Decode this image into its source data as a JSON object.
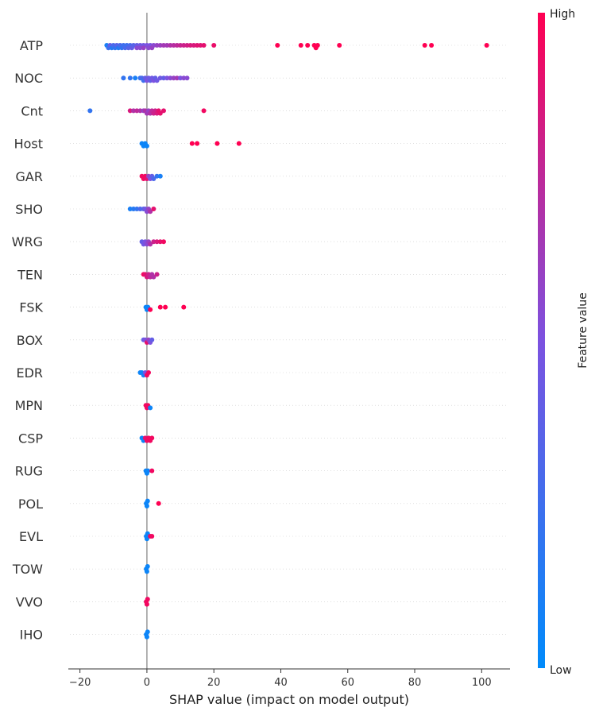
{
  "chart_data": {
    "type": "scatter",
    "subtype": "shap-beeswarm",
    "title": "",
    "xlabel": "SHAP value (impact on model output)",
    "ylabel": "",
    "xlim": [
      -23,
      108
    ],
    "x_ticks": [
      -20,
      0,
      20,
      40,
      60,
      80,
      100
    ],
    "grid": false,
    "zero_line": true,
    "colorbar": {
      "label": "Feature value",
      "high_label": "High",
      "low_label": "Low",
      "low_color": "#008bfb",
      "mid_color": "#7c52e0",
      "high_color": "#ff0052"
    },
    "features": [
      {
        "name": "ATP",
        "points": [
          [
            -12,
            0.1
          ],
          [
            -11.5,
            0.25
          ],
          [
            -11,
            0.4
          ],
          [
            -10.5,
            0.15
          ],
          [
            -10,
            0.3
          ],
          [
            -9.5,
            0.2
          ],
          [
            -9,
            0.35
          ],
          [
            -8.5,
            0.15
          ],
          [
            -8,
            0.3
          ],
          [
            -7.5,
            0.2
          ],
          [
            -7,
            0.25
          ],
          [
            -6.5,
            0.3
          ],
          [
            -6,
            0.25
          ],
          [
            -5.5,
            0.35
          ],
          [
            -5,
            0.3
          ],
          [
            -4.5,
            0.4
          ],
          [
            -4,
            0.35
          ],
          [
            -3,
            0.4
          ],
          [
            -2,
            0.45
          ],
          [
            -1,
            0.45
          ],
          [
            0,
            0.5
          ],
          [
            1,
            0.5
          ],
          [
            2,
            0.55
          ],
          [
            -3,
            0.55
          ],
          [
            -2,
            0.55
          ],
          [
            -1,
            0.6
          ],
          [
            0.5,
            0.55
          ],
          [
            1.5,
            0.6
          ],
          [
            3,
            0.6
          ],
          [
            4,
            0.62
          ],
          [
            5,
            0.65
          ],
          [
            6,
            0.65
          ],
          [
            7,
            0.7
          ],
          [
            8,
            0.72
          ],
          [
            9,
            0.75
          ],
          [
            10,
            0.78
          ],
          [
            11,
            0.8
          ],
          [
            12,
            0.82
          ],
          [
            13,
            0.85
          ],
          [
            14,
            0.85
          ],
          [
            15,
            0.88
          ],
          [
            16,
            0.88
          ],
          [
            17,
            0.9
          ],
          [
            20,
            0.92
          ],
          [
            39,
            1
          ],
          [
            46,
            1
          ],
          [
            48,
            1
          ],
          [
            50,
            1
          ],
          [
            50.5,
            1
          ],
          [
            51,
            1
          ],
          [
            57.5,
            1
          ],
          [
            83,
            1
          ],
          [
            85,
            1
          ],
          [
            101.5,
            1
          ]
        ]
      },
      {
        "name": "NOC",
        "points": [
          [
            -7,
            0.2
          ],
          [
            -5,
            0.2
          ],
          [
            -3.5,
            0.1
          ],
          [
            -2,
            0.2
          ],
          [
            -1.5,
            0.3
          ],
          [
            -1,
            0.25
          ],
          [
            -0.5,
            0.4
          ],
          [
            0,
            0.5
          ],
          [
            0.5,
            0.45
          ],
          [
            1,
            0.4
          ],
          [
            1.5,
            0.45
          ],
          [
            2,
            0.5
          ],
          [
            2.5,
            0.4
          ],
          [
            3,
            0.45
          ],
          [
            4,
            0.45
          ],
          [
            5,
            0.4
          ],
          [
            6,
            0.5
          ],
          [
            7,
            0.55
          ],
          [
            8,
            0.6
          ],
          [
            9,
            0.65
          ],
          [
            10,
            0.5
          ],
          [
            11,
            0.55
          ],
          [
            12,
            0.55
          ]
        ]
      },
      {
        "name": "Cnt",
        "points": [
          [
            -17,
            0.2
          ],
          [
            -5,
            0.85
          ],
          [
            -4,
            0.7
          ],
          [
            -3,
            0.75
          ],
          [
            -2,
            0.7
          ],
          [
            -1,
            0.6
          ],
          [
            -0.5,
            0.7
          ],
          [
            0,
            0.65
          ],
          [
            0.5,
            0.6
          ],
          [
            1,
            0.7
          ],
          [
            1.5,
            0.75
          ],
          [
            2,
            0.8
          ],
          [
            2.5,
            0.8
          ],
          [
            3,
            0.85
          ],
          [
            3.5,
            0.9
          ],
          [
            4,
            0.9
          ],
          [
            5,
            0.9
          ],
          [
            17,
            0.95
          ]
        ]
      },
      {
        "name": "Host",
        "points": [
          [
            -1.5,
            0.05
          ],
          [
            -1,
            0.05
          ],
          [
            -0.5,
            0.05
          ],
          [
            0,
            0.05
          ],
          [
            13.5,
            1
          ],
          [
            15,
            1
          ],
          [
            21,
            1
          ],
          [
            27.5,
            1
          ]
        ]
      },
      {
        "name": "GAR",
        "points": [
          [
            -1.5,
            0.95
          ],
          [
            -1,
            0.95
          ],
          [
            -0.5,
            0.95
          ],
          [
            0,
            0.9
          ],
          [
            0.5,
            0.6
          ],
          [
            1,
            0.5
          ],
          [
            1.5,
            0.4
          ],
          [
            2,
            0.3
          ],
          [
            3,
            0.2
          ],
          [
            4,
            0.1
          ]
        ]
      },
      {
        "name": "SHO",
        "points": [
          [
            -5,
            0.1
          ],
          [
            -4,
            0.15
          ],
          [
            -3,
            0.2
          ],
          [
            -2,
            0.3
          ],
          [
            -1,
            0.35
          ],
          [
            -0.5,
            0.45
          ],
          [
            0,
            0.55
          ],
          [
            0.5,
            0.6
          ],
          [
            1,
            0.7
          ],
          [
            2,
            0.9
          ]
        ]
      },
      {
        "name": "WRG",
        "points": [
          [
            -1.5,
            0.4
          ],
          [
            -1,
            0.45
          ],
          [
            -0.5,
            0.5
          ],
          [
            0,
            0.55
          ],
          [
            0.5,
            0.6
          ],
          [
            1,
            0.7
          ],
          [
            2,
            0.8
          ],
          [
            3,
            0.85
          ],
          [
            4,
            0.9
          ],
          [
            5,
            0.95
          ]
        ]
      },
      {
        "name": "TEN",
        "points": [
          [
            -1,
            0.95
          ],
          [
            -0.5,
            0.9
          ],
          [
            0,
            0.85
          ],
          [
            0.5,
            0.8
          ],
          [
            1,
            0.75
          ],
          [
            1.5,
            0.7
          ],
          [
            2,
            0.7
          ],
          [
            3,
            0.8
          ]
        ]
      },
      {
        "name": "FSK",
        "points": [
          [
            -0.3,
            0.05
          ],
          [
            0,
            0.05
          ],
          [
            0.3,
            0.05
          ],
          [
            1,
            1
          ],
          [
            4,
            1
          ],
          [
            5.5,
            1
          ],
          [
            11,
            1
          ]
        ]
      },
      {
        "name": "BOX",
        "points": [
          [
            -1,
            0.4
          ],
          [
            -0.5,
            0.5
          ],
          [
            0,
            0.9
          ],
          [
            0.5,
            0.6
          ],
          [
            1,
            0.5
          ],
          [
            1.5,
            0.4
          ]
        ]
      },
      {
        "name": "EDR",
        "points": [
          [
            -2,
            0.05
          ],
          [
            -1.5,
            0.05
          ],
          [
            -1,
            0.1
          ],
          [
            -0.5,
            0.5
          ],
          [
            0,
            0.95
          ],
          [
            0.5,
            0.95
          ]
        ]
      },
      {
        "name": "MPN",
        "points": [
          [
            -0.3,
            0.95
          ],
          [
            0,
            0.95
          ],
          [
            0.3,
            0.95
          ],
          [
            1,
            0.05
          ]
        ]
      },
      {
        "name": "CSP",
        "points": [
          [
            -1.5,
            0.05
          ],
          [
            -1,
            0.05
          ],
          [
            -0.5,
            0.9
          ],
          [
            0,
            0.95
          ],
          [
            0.5,
            0.95
          ],
          [
            1,
            0.95
          ],
          [
            1.5,
            0.95
          ]
        ]
      },
      {
        "name": "RUG",
        "points": [
          [
            -0.3,
            0.05
          ],
          [
            0,
            0.05
          ],
          [
            0.3,
            0.05
          ],
          [
            1.5,
            0.95
          ]
        ]
      },
      {
        "name": "POL",
        "points": [
          [
            -0.2,
            0.05
          ],
          [
            0,
            0.05
          ],
          [
            0.2,
            0.05
          ],
          [
            3.5,
            1
          ]
        ]
      },
      {
        "name": "EVL",
        "points": [
          [
            -0.2,
            0.05
          ],
          [
            0,
            0.05
          ],
          [
            0.2,
            0.05
          ],
          [
            1,
            0.95
          ],
          [
            1.5,
            0.95
          ]
        ]
      },
      {
        "name": "TOW",
        "points": [
          [
            -0.2,
            0.05
          ],
          [
            0,
            0.05
          ],
          [
            0.2,
            0.05
          ]
        ]
      },
      {
        "name": "VVO",
        "points": [
          [
            -0.2,
            0.95
          ],
          [
            0,
            0.95
          ],
          [
            0.2,
            0.95
          ]
        ]
      },
      {
        "name": "IHO",
        "points": [
          [
            -0.2,
            0.05
          ],
          [
            0,
            0.05
          ],
          [
            0.2,
            0.05
          ]
        ]
      }
    ]
  }
}
